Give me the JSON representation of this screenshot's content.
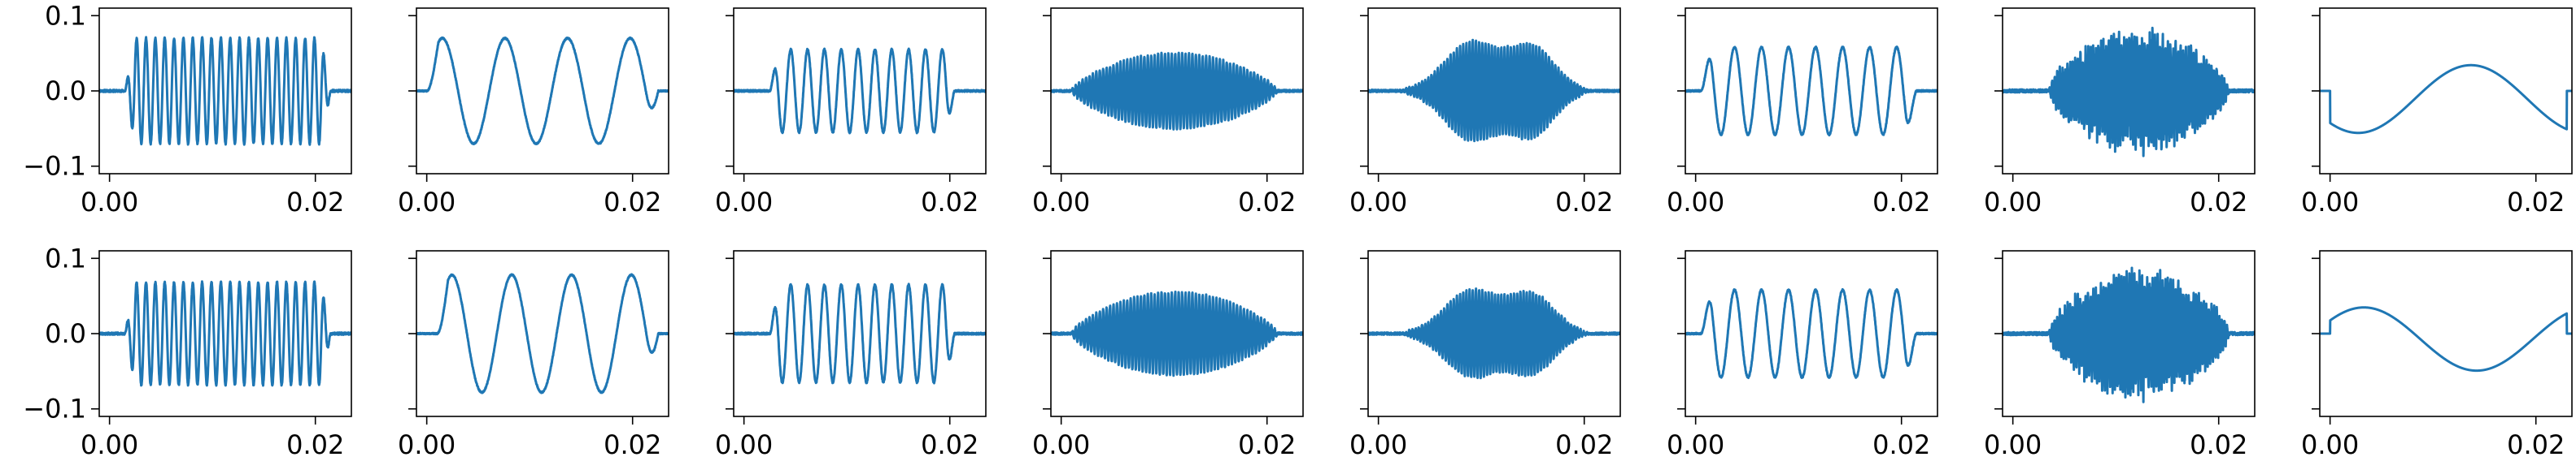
{
  "figure": {
    "layout": {
      "rows": 2,
      "cols": 8
    },
    "sharey": true,
    "line_color": "#1f77b4"
  },
  "chart_data": [
    {
      "type": "line",
      "row": 0,
      "col": 0,
      "pattern": "tone",
      "cycles": 22,
      "amplitude": 0.07,
      "span": [
        0.0015,
        0.0215
      ],
      "noise": 0.0015,
      "seed": 11,
      "xlim": [
        -0.001,
        0.0235
      ],
      "ylim": [
        -0.11,
        0.11
      ],
      "xticks": [
        0.0,
        0.02
      ],
      "xticklabels": [
        "0.00",
        "0.02"
      ],
      "yticks": [
        -0.1,
        0.0,
        0.1
      ],
      "yticklabels": [
        "−0.1",
        "0.0",
        "0.1"
      ]
    },
    {
      "type": "line",
      "row": 0,
      "col": 1,
      "pattern": "tone",
      "cycles": 3.7,
      "amplitude": 0.07,
      "span": [
        0.0,
        0.0225
      ],
      "noise": 0.0008,
      "seed": 12,
      "xlim": [
        -0.001,
        0.0235
      ],
      "ylim": [
        -0.11,
        0.11
      ],
      "xticks": [
        0.0,
        0.02
      ],
      "xticklabels": [
        "0.00",
        "0.02"
      ],
      "yticks": [
        -0.1,
        0.0,
        0.1
      ],
      "yticklabels": [
        "",
        "",
        ""
      ]
    },
    {
      "type": "line",
      "row": 0,
      "col": 2,
      "pattern": "tone",
      "cycles": 11,
      "amplitude": 0.055,
      "span": [
        0.0025,
        0.0205
      ],
      "noise": 0.0012,
      "seed": 13,
      "xlim": [
        -0.001,
        0.0235
      ],
      "ylim": [
        -0.11,
        0.11
      ],
      "xticks": [
        0.0,
        0.02
      ],
      "xticklabels": [
        "0.00",
        "0.02"
      ],
      "yticks": [
        -0.1,
        0.0,
        0.1
      ],
      "yticklabels": [
        "",
        "",
        ""
      ]
    },
    {
      "type": "line",
      "row": 0,
      "col": 3,
      "pattern": "burst",
      "cycles": 60,
      "amplitude": 0.05,
      "span": [
        0.001,
        0.021
      ],
      "noise": 0.0015,
      "seed": 14,
      "xlim": [
        -0.001,
        0.0235
      ],
      "ylim": [
        -0.11,
        0.11
      ],
      "xticks": [
        0.0,
        0.02
      ],
      "xticklabels": [
        "0.00",
        "0.02"
      ],
      "yticks": [
        -0.1,
        0.0,
        0.1
      ],
      "yticklabels": [
        "",
        "",
        ""
      ]
    },
    {
      "type": "line",
      "row": 0,
      "col": 4,
      "pattern": "bimodal",
      "cycles": 60,
      "amplitude": 0.068,
      "span": [
        0.002,
        0.0205
      ],
      "noise": 0.0015,
      "seed": 15,
      "xlim": [
        -0.001,
        0.0235
      ],
      "ylim": [
        -0.11,
        0.11
      ],
      "xticks": [
        0.0,
        0.02
      ],
      "xticklabels": [
        "0.00",
        "0.02"
      ],
      "yticks": [
        -0.1,
        0.0,
        0.1
      ],
      "yticklabels": [
        "",
        "",
        ""
      ]
    },
    {
      "type": "line",
      "row": 0,
      "col": 5,
      "pattern": "tone",
      "cycles": 8,
      "amplitude": 0.058,
      "span": [
        0.0005,
        0.0215
      ],
      "noise": 0.001,
      "seed": 16,
      "xlim": [
        -0.001,
        0.0235
      ],
      "ylim": [
        -0.11,
        0.11
      ],
      "xticks": [
        0.0,
        0.02
      ],
      "xticklabels": [
        "0.00",
        "0.02"
      ],
      "yticks": [
        -0.1,
        0.0,
        0.1
      ],
      "yticklabels": [
        "",
        "",
        ""
      ]
    },
    {
      "type": "line",
      "row": 0,
      "col": 6,
      "pattern": "noisyburst",
      "cycles": 70,
      "amplitude": 0.085,
      "span": [
        0.0035,
        0.021
      ],
      "noise": 0.002,
      "seed": 17,
      "xlim": [
        -0.001,
        0.0235
      ],
      "ylim": [
        -0.11,
        0.11
      ],
      "xticks": [
        0.0,
        0.02
      ],
      "xticklabels": [
        "0.00",
        "0.02"
      ],
      "yticks": [
        -0.1,
        0.0,
        0.1
      ],
      "yticklabels": [
        "",
        "",
        ""
      ]
    },
    {
      "type": "line",
      "row": 0,
      "col": 7,
      "pattern": "slow",
      "cycles": 1.05,
      "amplitude": 0.045,
      "phase": -0.75,
      "offset": 0.018,
      "span": [
        0.0,
        0.023
      ],
      "noise": 0.0,
      "seed": 18,
      "xlim": [
        -0.001,
        0.0235
      ],
      "ylim": [
        -0.11,
        0.11
      ],
      "xticks": [
        0.0,
        0.02
      ],
      "xticklabels": [
        "0.00",
        "0.02"
      ],
      "yticks": [
        -0.1,
        0.0,
        0.1
      ],
      "yticklabels": [
        "",
        "",
        ""
      ]
    },
    {
      "type": "line",
      "row": 1,
      "col": 0,
      "pattern": "tone",
      "cycles": 22,
      "amplitude": 0.068,
      "span": [
        0.0015,
        0.0215
      ],
      "noise": 0.0015,
      "seed": 21,
      "xlim": [
        -0.001,
        0.0235
      ],
      "ylim": [
        -0.11,
        0.11
      ],
      "xticks": [
        0.0,
        0.02
      ],
      "xticklabels": [
        "0.00",
        "0.02"
      ],
      "yticks": [
        -0.1,
        0.0,
        0.1
      ],
      "yticklabels": [
        "−0.1",
        "0.0",
        "0.1"
      ]
    },
    {
      "type": "line",
      "row": 1,
      "col": 1,
      "pattern": "tone",
      "cycles": 3.7,
      "amplitude": 0.078,
      "span": [
        0.001,
        0.0225
      ],
      "noise": 0.0008,
      "seed": 22,
      "xlim": [
        -0.001,
        0.0235
      ],
      "ylim": [
        -0.11,
        0.11
      ],
      "xticks": [
        0.0,
        0.02
      ],
      "xticklabels": [
        "0.00",
        "0.02"
      ],
      "yticks": [
        -0.1,
        0.0,
        0.1
      ],
      "yticklabels": [
        "",
        "",
        ""
      ]
    },
    {
      "type": "line",
      "row": 1,
      "col": 2,
      "pattern": "tone",
      "cycles": 11,
      "amplitude": 0.065,
      "span": [
        0.0025,
        0.0205
      ],
      "noise": 0.0012,
      "seed": 23,
      "xlim": [
        -0.001,
        0.0235
      ],
      "ylim": [
        -0.11,
        0.11
      ],
      "xticks": [
        0.0,
        0.02
      ],
      "xticklabels": [
        "0.00",
        "0.02"
      ],
      "yticks": [
        -0.1,
        0.0,
        0.1
      ],
      "yticklabels": [
        "",
        "",
        ""
      ]
    },
    {
      "type": "line",
      "row": 1,
      "col": 3,
      "pattern": "burst",
      "cycles": 60,
      "amplitude": 0.055,
      "span": [
        0.001,
        0.021
      ],
      "noise": 0.0015,
      "seed": 24,
      "xlim": [
        -0.001,
        0.0235
      ],
      "ylim": [
        -0.11,
        0.11
      ],
      "xticks": [
        0.0,
        0.02
      ],
      "xticklabels": [
        "0.00",
        "0.02"
      ],
      "yticks": [
        -0.1,
        0.0,
        0.1
      ],
      "yticklabels": [
        "",
        "",
        ""
      ]
    },
    {
      "type": "line",
      "row": 1,
      "col": 4,
      "pattern": "bimodal",
      "cycles": 60,
      "amplitude": 0.06,
      "span": [
        0.002,
        0.0205
      ],
      "noise": 0.0015,
      "seed": 25,
      "xlim": [
        -0.001,
        0.0235
      ],
      "ylim": [
        -0.11,
        0.11
      ],
      "xticks": [
        0.0,
        0.02
      ],
      "xticklabels": [
        "0.00",
        "0.02"
      ],
      "yticks": [
        -0.1,
        0.0,
        0.1
      ],
      "yticklabels": [
        "",
        "",
        ""
      ]
    },
    {
      "type": "line",
      "row": 1,
      "col": 5,
      "pattern": "tone",
      "cycles": 8,
      "amplitude": 0.058,
      "span": [
        0.0005,
        0.0215
      ],
      "noise": 0.001,
      "seed": 26,
      "xlim": [
        -0.001,
        0.0235
      ],
      "ylim": [
        -0.11,
        0.11
      ],
      "xticks": [
        0.0,
        0.02
      ],
      "xticklabels": [
        "0.00",
        "0.02"
      ],
      "yticks": [
        -0.1,
        0.0,
        0.1
      ],
      "yticklabels": [
        "",
        "",
        ""
      ]
    },
    {
      "type": "line",
      "row": 1,
      "col": 6,
      "pattern": "noisyburst",
      "cycles": 70,
      "amplitude": 0.09,
      "span": [
        0.0035,
        0.021
      ],
      "noise": 0.002,
      "seed": 27,
      "xlim": [
        -0.001,
        0.0235
      ],
      "ylim": [
        -0.11,
        0.11
      ],
      "xticks": [
        0.0,
        0.02
      ],
      "xticklabels": [
        "0.00",
        "0.02"
      ],
      "yticks": [
        -0.1,
        0.0,
        0.1
      ],
      "yticklabels": [
        "",
        "",
        ""
      ]
    },
    {
      "type": "line",
      "row": 1,
      "col": 7,
      "pattern": "slow",
      "cycles": 1.05,
      "amplitude": 0.042,
      "phase": 0.2,
      "offset": 0.012,
      "span": [
        0.0,
        0.023
      ],
      "noise": 0.0,
      "seed": 28,
      "xlim": [
        -0.001,
        0.0235
      ],
      "ylim": [
        -0.11,
        0.11
      ],
      "xticks": [
        0.0,
        0.02
      ],
      "xticklabels": [
        "0.00",
        "0.02"
      ],
      "yticks": [
        -0.1,
        0.0,
        0.1
      ],
      "yticklabels": [
        "",
        "",
        ""
      ]
    }
  ]
}
